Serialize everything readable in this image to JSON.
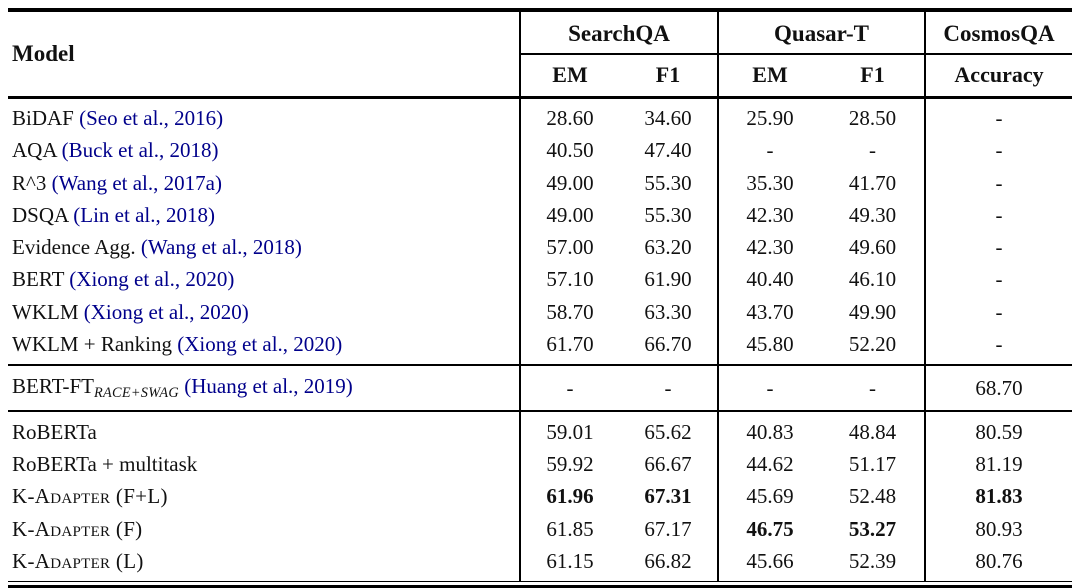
{
  "colors": {
    "citation_link": "#00008B",
    "text": "#111111",
    "rule": "#000000",
    "background": "#ffffff"
  },
  "table": {
    "header": {
      "model_label": "Model",
      "groups": [
        {
          "label": "SearchQA",
          "cols": [
            "EM",
            "F1"
          ]
        },
        {
          "label": "Quasar-T",
          "cols": [
            "EM",
            "F1"
          ]
        },
        {
          "label": "CosmosQA",
          "cols": [
            "Accuracy"
          ]
        }
      ]
    },
    "sections": [
      {
        "rows": [
          {
            "model": "BiDAF",
            "subscript": "",
            "citation": "(Seo et al., 2016)",
            "smallcaps": false,
            "values": [
              "28.60",
              "34.60",
              "25.90",
              "28.50",
              "-"
            ],
            "bold": []
          },
          {
            "model": "AQA",
            "subscript": "",
            "citation": "(Buck et al., 2018)",
            "smallcaps": false,
            "values": [
              "40.50",
              "47.40",
              "-",
              "-",
              "-"
            ],
            "bold": []
          },
          {
            "model": "R^3",
            "subscript": "",
            "citation": "(Wang et al., 2017a)",
            "smallcaps": false,
            "values": [
              "49.00",
              "55.30",
              "35.30",
              "41.70",
              "-"
            ],
            "bold": []
          },
          {
            "model": "DSQA",
            "subscript": "",
            "citation": "(Lin et al., 2018)",
            "smallcaps": false,
            "values": [
              "49.00",
              "55.30",
              "42.30",
              "49.30",
              "-"
            ],
            "bold": []
          },
          {
            "model": "Evidence Agg.",
            "subscript": "",
            "citation": "(Wang et al., 2018)",
            "smallcaps": false,
            "values": [
              "57.00",
              "63.20",
              "42.30",
              "49.60",
              "-"
            ],
            "bold": []
          },
          {
            "model": "BERT",
            "subscript": "",
            "citation": "(Xiong et al., 2020)",
            "smallcaps": false,
            "values": [
              "57.10",
              "61.90",
              "40.40",
              "46.10",
              "-"
            ],
            "bold": []
          },
          {
            "model": "WKLM",
            "subscript": "",
            "citation": "(Xiong et al., 2020)",
            "smallcaps": false,
            "values": [
              "58.70",
              "63.30",
              "43.70",
              "49.90",
              "-"
            ],
            "bold": []
          },
          {
            "model": "WKLM + Ranking",
            "subscript": "",
            "citation": "(Xiong et al., 2020)",
            "smallcaps": false,
            "values": [
              "61.70",
              "66.70",
              "45.80",
              "52.20",
              "-"
            ],
            "bold": []
          }
        ]
      },
      {
        "rows": [
          {
            "model": "BERT-FT",
            "subscript": "RACE+SWAG",
            "citation": "(Huang et al., 2019)",
            "smallcaps": false,
            "values": [
              "-",
              "-",
              "-",
              "-",
              "68.70"
            ],
            "bold": []
          }
        ]
      },
      {
        "rows": [
          {
            "model": "RoBERTa",
            "subscript": "",
            "citation": "",
            "smallcaps": false,
            "values": [
              "59.01",
              "65.62",
              "40.83",
              "48.84",
              "80.59"
            ],
            "bold": []
          },
          {
            "model": "RoBERTa + multitask",
            "subscript": "",
            "citation": "",
            "smallcaps": false,
            "values": [
              "59.92",
              "66.67",
              "44.62",
              "51.17",
              "81.19"
            ],
            "bold": []
          },
          {
            "model": "K-Adapter (F+L)",
            "subscript": "",
            "citation": "",
            "smallcaps": true,
            "values": [
              "61.96",
              "67.31",
              "45.69",
              "52.48",
              "81.83"
            ],
            "bold": [
              0,
              1,
              4
            ]
          },
          {
            "model": "K-Adapter (F)",
            "subscript": "",
            "citation": "",
            "smallcaps": true,
            "values": [
              "61.85",
              "67.17",
              "46.75",
              "53.27",
              "80.93"
            ],
            "bold": [
              2,
              3
            ]
          },
          {
            "model": "K-Adapter (L)",
            "subscript": "",
            "citation": "",
            "smallcaps": true,
            "values": [
              "61.15",
              "66.82",
              "45.66",
              "52.39",
              "80.76"
            ],
            "bold": []
          }
        ]
      }
    ]
  }
}
